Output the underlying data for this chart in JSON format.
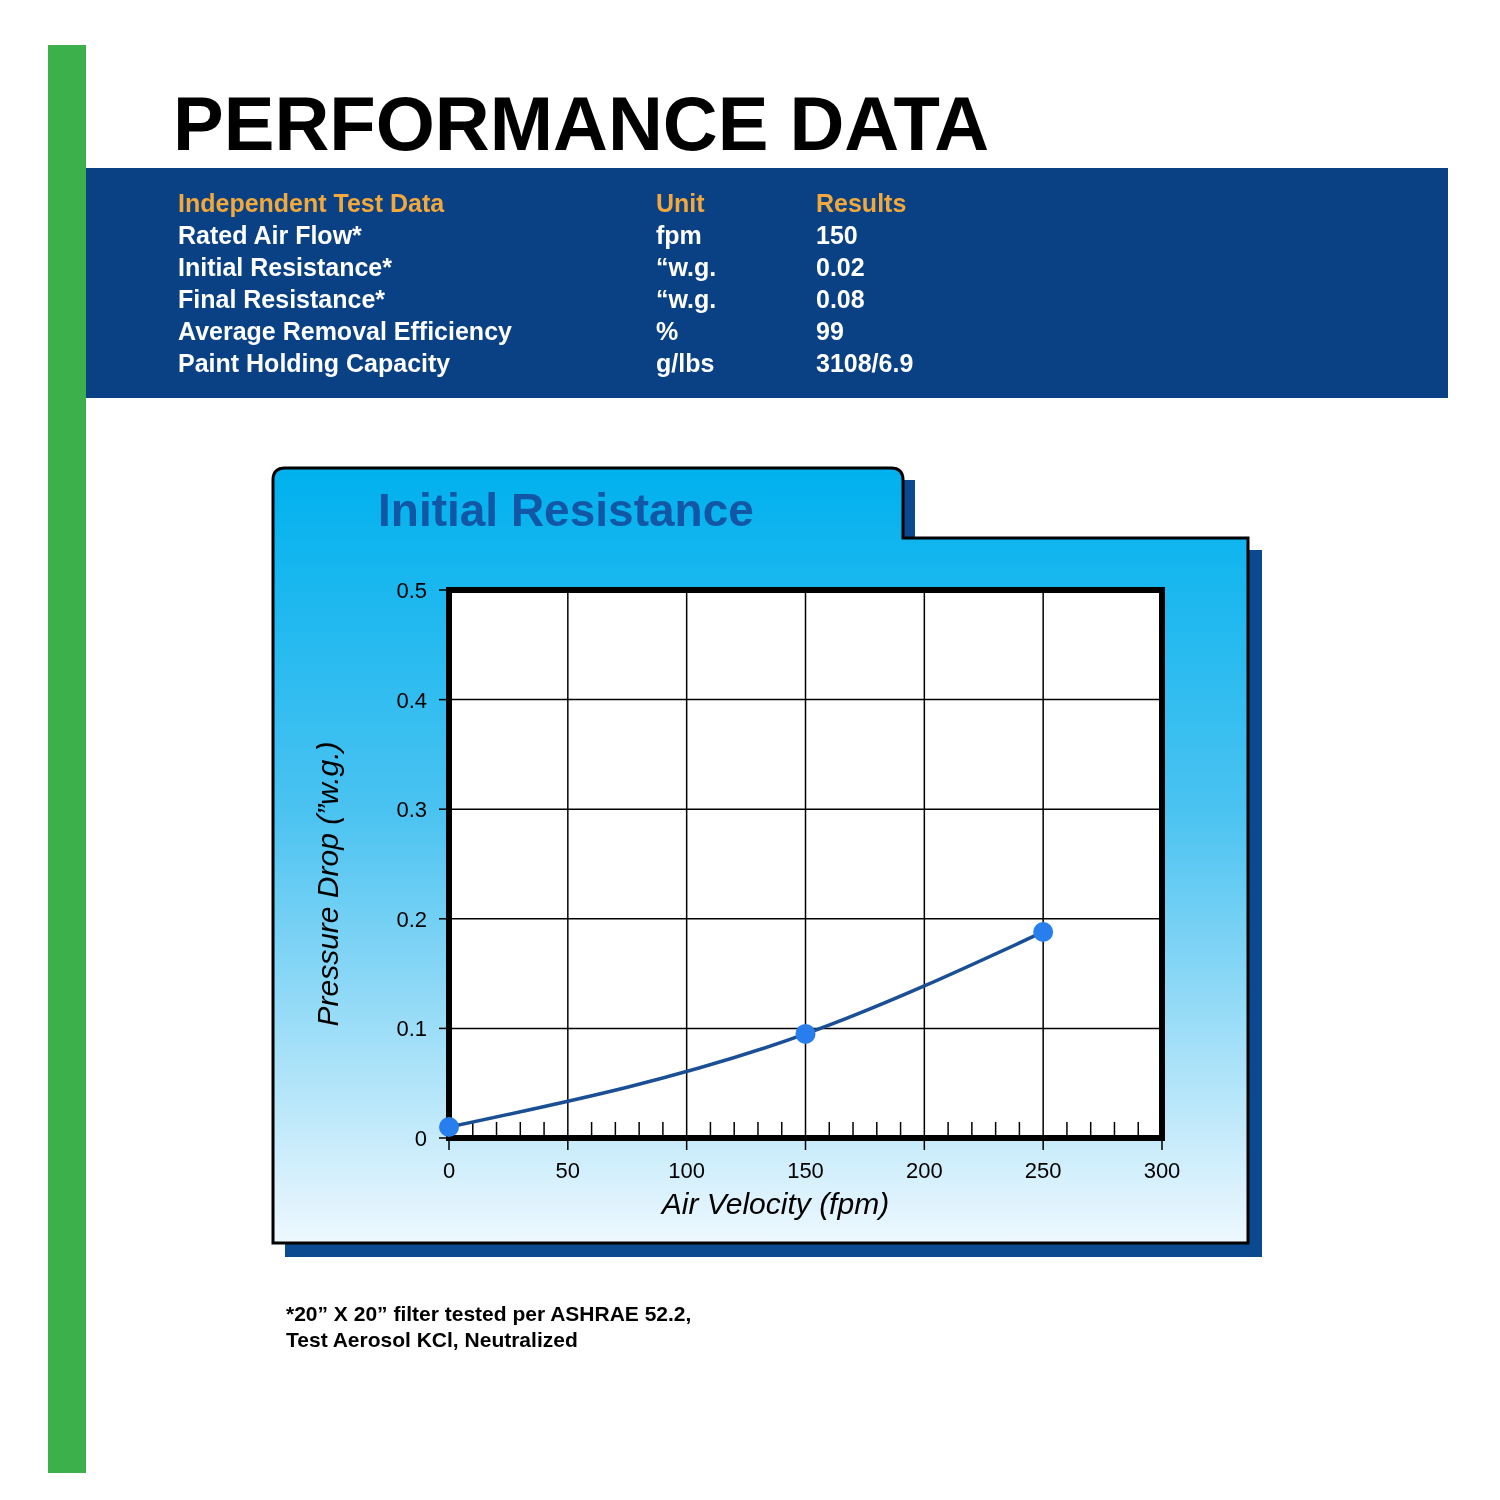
{
  "chart_data": [
    {
      "type": "other",
      "title": "PERFORMANCE DATA",
      "annotations": [
        "Independent Test Data",
        "Unit",
        "Results",
        "Rated Air Flow*",
        "fpm",
        "150",
        "Initial Resistance*",
        "“w.g.",
        "0.02",
        "Final Resistance*",
        "“w.g.",
        "0.08",
        "Average Removal Efficiency",
        "%",
        "99",
        "Paint Holding Capacity",
        "g/lbs",
        "3108/6.9"
      ]
    },
    {
      "type": "line",
      "title": "Initial Resistance",
      "xlabel": "Air Velocity (fpm)",
      "ylabel": "Pressure Drop (”w.g.)",
      "x": [
        0,
        150,
        250
      ],
      "series": [
        {
          "color": "#1a4f96",
          "values": [
            0.01,
            0.095,
            0.188
          ]
        }
      ],
      "xlim": [
        0,
        300
      ],
      "ylim": [
        0,
        0.5
      ],
      "xticks": [
        0,
        {
          "value": 10,
          "label": null
        },
        {
          "value": 20,
          "label": null
        },
        {
          "value": 30,
          "label": null
        },
        {
          "value": 40,
          "label": null
        },
        50,
        {
          "value": 60,
          "label": null
        },
        {
          "value": 70,
          "label": null
        },
        {
          "value": 80,
          "label": null
        },
        {
          "value": 90,
          "label": null
        },
        100,
        {
          "value": 110,
          "label": null
        },
        {
          "value": 120,
          "label": null
        },
        {
          "value": 130,
          "label": null
        },
        {
          "value": 140,
          "label": null
        },
        150,
        {
          "value": 160,
          "label": null
        },
        {
          "value": 170,
          "label": null
        },
        {
          "value": 180,
          "label": null
        },
        {
          "value": 190,
          "label": null
        },
        200,
        {
          "value": 210,
          "label": null
        },
        {
          "value": 220,
          "label": null
        },
        {
          "value": 230,
          "label": null
        },
        {
          "value": 240,
          "label": null
        },
        250,
        {
          "value": 260,
          "label": null
        },
        {
          "value": 270,
          "label": null
        },
        {
          "value": 280,
          "label": null
        },
        {
          "value": 290,
          "label": null
        },
        300
      ],
      "yticks": [
        0,
        0.1,
        0.2,
        0.3,
        0.4,
        0.5
      ],
      "grid": true,
      "marker": "circle",
      "annotations": [
        "*20” X 20” filter tested per ASHRAE 52.2,",
        "Test Aerosol KCl, Neutralized"
      ]
    }
  ]
}
